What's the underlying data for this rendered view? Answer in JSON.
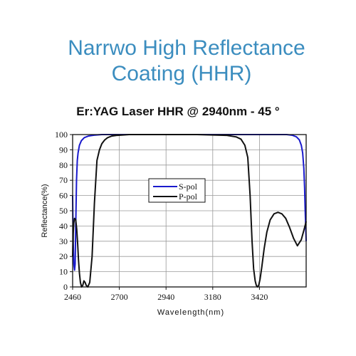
{
  "header": {
    "title_line1": "Narrwo High Reflectance",
    "title_line2": "Coating (HHR)"
  },
  "chart_data": {
    "type": "line",
    "title": "Er:YAG Laser HHR  @  2940nm - 45 °",
    "xlabel": "Wavelength(nm)",
    "ylabel": "Reflectance(%)",
    "xlim": [
      2460,
      3660
    ],
    "ylim": [
      0,
      100
    ],
    "xticks": [
      2460,
      2700,
      2940,
      3180,
      3420
    ],
    "yticks": [
      0,
      10,
      20,
      30,
      40,
      50,
      60,
      70,
      80,
      90,
      100
    ],
    "grid": true,
    "legend_position": "center",
    "series": [
      {
        "name": "S-pol",
        "color": "#1a1acc",
        "x": [
          2460,
          2463,
          2466,
          2470,
          2473,
          2476,
          2480,
          2484,
          2488,
          2495,
          2505,
          2520,
          2540,
          2570,
          2610,
          2700,
          3200,
          3560,
          3590,
          3610,
          3625,
          3635,
          3642,
          3648,
          3652,
          3655,
          3658,
          3660
        ],
        "y": [
          60,
          30,
          15,
          11,
          15,
          40,
          70,
          83,
          88,
          93,
          96,
          98,
          99,
          99.6,
          100,
          100,
          100,
          100,
          99.5,
          98.5,
          96.5,
          93,
          88,
          78,
          65,
          50,
          38,
          30
        ]
      },
      {
        "name": "P-pol",
        "color": "#111111",
        "x": [
          2460,
          2463,
          2466,
          2470,
          2476,
          2481,
          2486,
          2490,
          2495,
          2500,
          2506,
          2512,
          2518,
          2524,
          2530,
          2538,
          2548,
          2560,
          2572,
          2585,
          2598,
          2610,
          2625,
          2640,
          2660,
          2690,
          2750,
          2900,
          3100,
          3250,
          3300,
          3325,
          3345,
          3360,
          3372,
          3382,
          3390,
          3398,
          3404,
          3410,
          3416,
          3423,
          3432,
          3444,
          3458,
          3475,
          3495,
          3515,
          3535,
          3555,
          3575,
          3595,
          3615,
          3635,
          3650,
          3660
        ],
        "y": [
          20,
          35,
          42,
          45,
          44,
          38,
          28,
          18,
          9,
          3,
          0,
          1,
          4,
          3,
          1,
          0,
          3,
          20,
          55,
          83,
          90,
          94,
          96.5,
          98,
          99,
          99.5,
          100,
          100,
          100,
          99.5,
          98.5,
          97,
          93,
          85,
          60,
          30,
          12,
          4,
          1,
          0,
          1,
          5,
          13,
          25,
          36,
          44,
          48,
          49,
          48,
          45,
          39,
          32,
          27,
          31,
          38,
          43
        ]
      }
    ]
  }
}
